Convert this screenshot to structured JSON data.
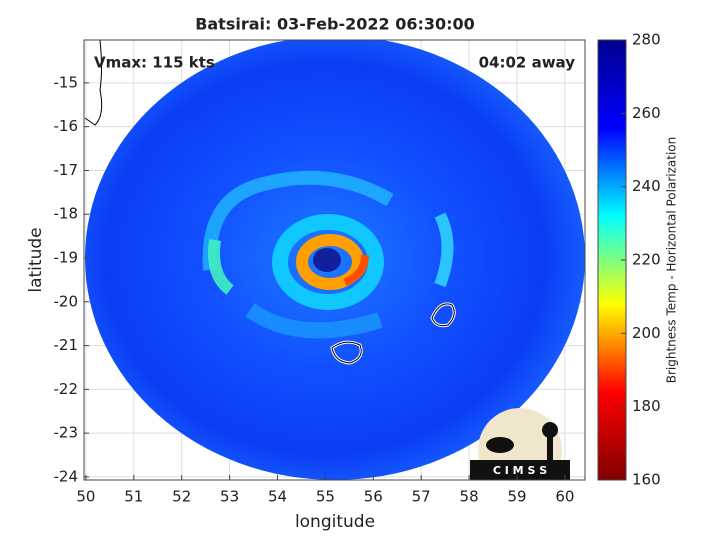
{
  "chart_data": {
    "type": "image-map",
    "title": "Batsirai: 03-Feb-2022 06:30:00",
    "annotations": [
      "Vmax: 115 kts",
      "04:02 away"
    ],
    "xlabel": "longitude",
    "ylabel": "latitude",
    "xlim": [
      49.96,
      60.42
    ],
    "ylim": [
      -24.07,
      -14.02
    ],
    "xticks": [
      50,
      51,
      52,
      53,
      54,
      55,
      56,
      57,
      58,
      59,
      60
    ],
    "yticks": [
      -15,
      -16,
      -17,
      -18,
      -19,
      -20,
      -21,
      -22,
      -23,
      -24
    ],
    "grid": true,
    "colorbar": {
      "label": "Brightness Temp - Horizontal Polarization",
      "clim": [
        160,
        280
      ],
      "ticks": [
        160,
        180,
        200,
        220,
        240,
        260,
        280
      ],
      "colormap": [
        "#800000",
        "#ff0000",
        "#ffff00",
        "#00ffff",
        "#0000ff",
        "#00008f"
      ]
    },
    "logo": "C I M S S"
  }
}
